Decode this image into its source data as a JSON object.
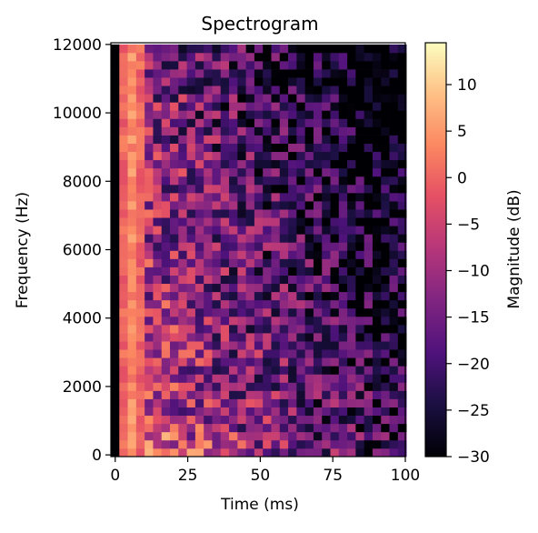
{
  "chart_data": {
    "type": "heatmap",
    "title": "Spectrogram",
    "xlabel": "Time (ms)",
    "ylabel": "Frequency (Hz)",
    "xlim": [
      -1.5,
      100
    ],
    "ylim": [
      -50,
      12050
    ],
    "xticks": [
      0,
      25,
      50,
      75,
      100
    ],
    "yticks": [
      0,
      2000,
      4000,
      6000,
      8000,
      10000,
      12000
    ],
    "colorbar": {
      "label": "Magnitude (dB)",
      "range": [
        -30,
        14.5
      ],
      "ticks": [
        -30,
        -25,
        -20,
        -15,
        -10,
        -5,
        0,
        5,
        10
      ],
      "colormap": "magma"
    },
    "time_bins_ms": {
      "start": -1.5,
      "step": 2.91,
      "count": 35
    },
    "frequency_bins_hz": {
      "start": -50,
      "step": 241,
      "count": 50
    },
    "magnitude_db": {
      "silent_first_bin": -30,
      "onset_bins_ms": [
        3.9,
        6.8,
        9.7
      ],
      "onset_level_db": [
        0,
        4,
        0
      ],
      "decay_db_per_ms": 0.17,
      "high_freq_rolloff_db": 6,
      "low_freq_boost_db": 9,
      "noise_spread_db": 12,
      "floor_db": -30,
      "peak_db": 14.5
    }
  }
}
